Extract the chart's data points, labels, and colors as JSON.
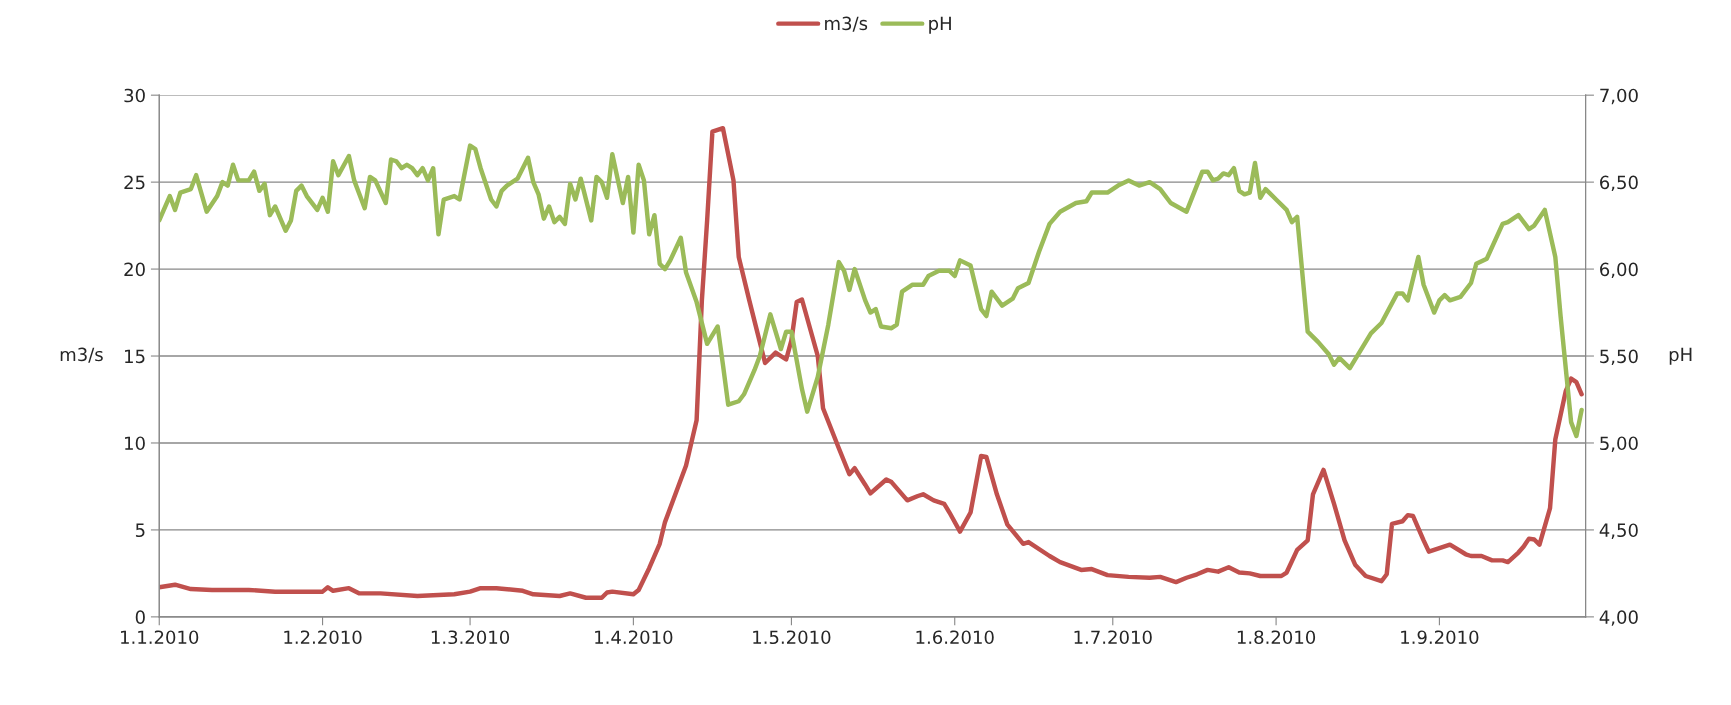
{
  "chart_data": {
    "type": "line",
    "ylabel": "m3/s",
    "y2label": "pH",
    "xlim": [
      "2010-01-01",
      "2010-09-28T18:00"
    ],
    "xticks": [
      {
        "value": "2010-01-01",
        "label": "1.1.2010"
      },
      {
        "value": "2010-02-01",
        "label": "1.2.2010"
      },
      {
        "value": "2010-03-01",
        "label": "1.3.2010"
      },
      {
        "value": "2010-04-01",
        "label": "1.4.2010"
      },
      {
        "value": "2010-05-01",
        "label": "1.5.2010"
      },
      {
        "value": "2010-06-01",
        "label": "1.6.2010"
      },
      {
        "value": "2010-07-01",
        "label": "1.7.2010"
      },
      {
        "value": "2010-08-01",
        "label": "1.8.2010"
      },
      {
        "value": "2010-09-01",
        "label": "1.9.2010"
      }
    ],
    "ylim": [
      0,
      30
    ],
    "yticks": [
      0,
      5,
      10,
      15,
      20,
      25,
      30
    ],
    "y2lim": [
      4,
      7
    ],
    "y2ticks": [
      {
        "value": 4,
        "label": "4,00"
      },
      {
        "value": 4.5,
        "label": "4,50"
      },
      {
        "value": 5,
        "label": "5,00"
      },
      {
        "value": 5.5,
        "label": "5,50"
      },
      {
        "value": 6,
        "label": "6,00"
      },
      {
        "value": 6.5,
        "label": "6,50"
      },
      {
        "value": 7,
        "label": "7,00"
      }
    ],
    "grid": "y",
    "legend": "top",
    "marker": "none",
    "line_style": "solid",
    "series": [
      {
        "name": "m3/s",
        "color": "#c0504d",
        "x": [
          "2010-01-01",
          "2010-01-04",
          "2010-01-07",
          "2010-01-11",
          "2010-01-18",
          "2010-01-23",
          "2010-02-01",
          "2010-02-02",
          "2010-02-03",
          "2010-02-06",
          "2010-02-08",
          "2010-02-12",
          "2010-02-19",
          "2010-02-26",
          "2010-03-01",
          "2010-03-03",
          "2010-03-06",
          "2010-03-11",
          "2010-03-13",
          "2010-03-18",
          "2010-03-20",
          "2010-03-23",
          "2010-03-26",
          "2010-03-27",
          "2010-03-28",
          "2010-04-01",
          "2010-04-02",
          "2010-04-04",
          "2010-04-06",
          "2010-04-07",
          "2010-04-11",
          "2010-04-13",
          "2010-04-14",
          "2010-04-15",
          "2010-04-16",
          "2010-04-18",
          "2010-04-20",
          "2010-04-21",
          "2010-04-23",
          "2010-04-26",
          "2010-04-28",
          "2010-04-30",
          "2010-05-01",
          "2010-05-02",
          "2010-05-03",
          "2010-05-06",
          "2010-05-07",
          "2010-05-10",
          "2010-05-12",
          "2010-05-13",
          "2010-05-15",
          "2010-05-16",
          "2010-05-19",
          "2010-05-20",
          "2010-05-23",
          "2010-05-25",
          "2010-05-26",
          "2010-05-28",
          "2010-05-30",
          "2010-05-31",
          "2010-06-02",
          "2010-06-04",
          "2010-06-06",
          "2010-06-07",
          "2010-06-09",
          "2010-06-11",
          "2010-06-14",
          "2010-06-15",
          "2010-06-19",
          "2010-06-21",
          "2010-06-25",
          "2010-06-27",
          "2010-06-30",
          "2010-07-04",
          "2010-07-08",
          "2010-07-10",
          "2010-07-13",
          "2010-07-15",
          "2010-07-17",
          "2010-07-19",
          "2010-07-21",
          "2010-07-23",
          "2010-07-25",
          "2010-07-27",
          "2010-07-29",
          "2010-08-02",
          "2010-08-03",
          "2010-08-05",
          "2010-08-07",
          "2010-08-08",
          "2010-08-10",
          "2010-08-12",
          "2010-08-14",
          "2010-08-16",
          "2010-08-18",
          "2010-08-21",
          "2010-08-22",
          "2010-08-23",
          "2010-08-25",
          "2010-08-26",
          "2010-08-27",
          "2010-08-29",
          "2010-08-30",
          "2010-09-02",
          "2010-09-03",
          "2010-09-06",
          "2010-09-07",
          "2010-09-09",
          "2010-09-11",
          "2010-09-13",
          "2010-09-14",
          "2010-09-16",
          "2010-09-17",
          "2010-09-18",
          "2010-09-19",
          "2010-09-20",
          "2010-09-22",
          "2010-09-23",
          "2010-09-25",
          "2010-09-26",
          "2010-09-27",
          "2010-09-28"
        ],
        "values": [
          1.7,
          1.85,
          1.6,
          1.55,
          1.55,
          1.45,
          1.45,
          1.7,
          1.5,
          1.65,
          1.35,
          1.35,
          1.2,
          1.3,
          1.45,
          1.65,
          1.65,
          1.5,
          1.3,
          1.2,
          1.35,
          1.1,
          1.1,
          1.4,
          1.45,
          1.3,
          1.55,
          2.8,
          4.2,
          5.45,
          8.7,
          11.3,
          18.2,
          22.8,
          27.9,
          28.1,
          25.1,
          20.7,
          18.2,
          14.6,
          15.2,
          14.8,
          15.9,
          18.1,
          18.25,
          15.0,
          12.0,
          9.7,
          8.2,
          8.55,
          7.6,
          7.1,
          7.9,
          7.75,
          6.7,
          6.95,
          7.05,
          6.7,
          6.5,
          6.0,
          4.9,
          6.0,
          9.25,
          9.2,
          7.05,
          5.3,
          4.2,
          4.3,
          3.5,
          3.15,
          2.7,
          2.75,
          2.4,
          2.3,
          2.25,
          2.3,
          2.0,
          2.25,
          2.45,
          2.7,
          2.6,
          2.85,
          2.55,
          2.5,
          2.35,
          2.35,
          2.55,
          3.85,
          4.4,
          7.05,
          8.45,
          6.5,
          4.4,
          3.0,
          2.35,
          2.05,
          2.45,
          5.35,
          5.5,
          5.85,
          5.8,
          4.4,
          3.75,
          4.05,
          4.15,
          3.6,
          3.5,
          3.5,
          3.25,
          3.25,
          3.15,
          3.7,
          4.05,
          4.5,
          4.45,
          4.15,
          6.25,
          10.2,
          13.0,
          13.7,
          13.5,
          12.8
        ]
      },
      {
        "name": "pH",
        "color": "#9bbb59",
        "axis": "y2",
        "x": [
          "2010-01-01",
          "2010-01-03",
          "2010-01-04",
          "2010-01-05",
          "2010-01-07",
          "2010-01-08",
          "2010-01-10",
          "2010-01-12",
          "2010-01-13",
          "2010-01-14",
          "2010-01-15",
          "2010-01-16",
          "2010-01-18",
          "2010-01-19",
          "2010-01-20",
          "2010-01-21",
          "2010-01-22",
          "2010-01-23",
          "2010-01-25",
          "2010-01-26",
          "2010-01-27",
          "2010-01-28",
          "2010-01-29",
          "2010-01-31",
          "2010-02-01",
          "2010-02-02",
          "2010-02-03",
          "2010-02-04",
          "2010-02-06",
          "2010-02-07",
          "2010-02-09",
          "2010-02-10",
          "2010-02-11",
          "2010-02-13",
          "2010-02-14",
          "2010-02-15",
          "2010-02-16",
          "2010-02-17",
          "2010-02-18",
          "2010-02-19",
          "2010-02-20",
          "2010-02-21",
          "2010-02-22",
          "2010-02-23",
          "2010-02-24",
          "2010-02-26",
          "2010-02-27",
          "2010-03-01",
          "2010-03-02",
          "2010-03-03",
          "2010-03-05",
          "2010-03-06",
          "2010-03-07",
          "2010-03-08",
          "2010-03-10",
          "2010-03-12",
          "2010-03-13",
          "2010-03-14",
          "2010-03-15",
          "2010-03-16",
          "2010-03-17",
          "2010-03-18",
          "2010-03-19",
          "2010-03-20",
          "2010-03-21",
          "2010-03-22",
          "2010-03-24",
          "2010-03-25",
          "2010-03-26",
          "2010-03-27",
          "2010-03-28",
          "2010-03-30",
          "2010-03-31",
          "2010-04-01",
          "2010-04-02",
          "2010-04-03",
          "2010-04-04",
          "2010-04-05",
          "2010-04-06",
          "2010-04-07",
          "2010-04-08",
          "2010-04-10",
          "2010-04-11",
          "2010-04-13",
          "2010-04-15",
          "2010-04-17",
          "2010-04-18",
          "2010-04-19",
          "2010-04-21",
          "2010-04-22",
          "2010-04-24",
          "2010-04-25",
          "2010-04-27",
          "2010-04-29",
          "2010-04-30",
          "2010-05-01",
          "2010-05-03",
          "2010-05-04",
          "2010-05-06",
          "2010-05-08",
          "2010-05-10",
          "2010-05-11",
          "2010-05-12",
          "2010-05-13",
          "2010-05-15",
          "2010-05-16",
          "2010-05-17",
          "2010-05-18",
          "2010-05-20",
          "2010-05-21",
          "2010-05-22",
          "2010-05-24",
          "2010-05-26",
          "2010-05-27",
          "2010-05-29",
          "2010-05-31",
          "2010-06-01",
          "2010-06-02",
          "2010-06-04",
          "2010-06-06",
          "2010-06-07",
          "2010-06-08",
          "2010-06-10",
          "2010-06-12",
          "2010-06-13",
          "2010-06-15",
          "2010-06-17",
          "2010-06-19",
          "2010-06-21",
          "2010-06-24",
          "2010-06-26",
          "2010-06-27",
          "2010-06-30",
          "2010-07-02",
          "2010-07-04",
          "2010-07-06",
          "2010-07-08",
          "2010-07-10",
          "2010-07-12",
          "2010-07-15",
          "2010-07-18",
          "2010-07-19",
          "2010-07-20",
          "2010-07-21",
          "2010-07-22",
          "2010-07-23",
          "2010-07-24",
          "2010-07-25",
          "2010-07-26",
          "2010-07-27",
          "2010-07-28",
          "2010-07-29",
          "2010-07-30",
          "2010-08-01",
          "2010-08-03",
          "2010-08-04",
          "2010-08-05",
          "2010-08-07",
          "2010-08-09",
          "2010-08-11",
          "2010-08-12",
          "2010-08-13",
          "2010-08-15",
          "2010-08-19",
          "2010-08-21",
          "2010-08-24",
          "2010-08-25",
          "2010-08-26",
          "2010-08-28",
          "2010-08-29",
          "2010-08-31",
          "2010-09-01",
          "2010-09-02",
          "2010-09-03",
          "2010-09-05",
          "2010-09-07",
          "2010-09-08",
          "2010-09-10",
          "2010-09-13",
          "2010-09-14",
          "2010-09-16",
          "2010-09-18",
          "2010-09-19",
          "2010-09-21",
          "2010-09-23",
          "2010-09-24",
          "2010-09-26",
          "2010-09-27",
          "2010-09-28"
        ],
        "values": [
          6.28,
          6.42,
          6.34,
          6.44,
          6.46,
          6.54,
          6.33,
          6.42,
          6.5,
          6.48,
          6.6,
          6.51,
          6.51,
          6.56,
          6.45,
          6.49,
          6.31,
          6.36,
          6.22,
          6.28,
          6.45,
          6.48,
          6.42,
          6.34,
          6.41,
          6.33,
          6.62,
          6.54,
          6.65,
          6.51,
          6.35,
          6.53,
          6.51,
          6.38,
          6.63,
          6.62,
          6.58,
          6.6,
          6.58,
          6.54,
          6.58,
          6.51,
          6.58,
          6.2,
          6.4,
          6.42,
          6.4,
          6.71,
          6.69,
          6.58,
          6.4,
          6.36,
          6.45,
          6.48,
          6.52,
          6.64,
          6.5,
          6.43,
          6.29,
          6.36,
          6.27,
          6.3,
          6.26,
          6.49,
          6.4,
          6.52,
          6.28,
          6.53,
          6.5,
          6.41,
          6.66,
          6.38,
          6.53,
          6.21,
          6.6,
          6.51,
          6.2,
          6.31,
          6.03,
          6.0,
          6.05,
          6.18,
          5.98,
          5.81,
          5.57,
          5.67,
          5.45,
          5.22,
          5.24,
          5.28,
          5.42,
          5.5,
          5.74,
          5.54,
          5.64,
          5.64,
          5.31,
          5.18,
          5.38,
          5.68,
          6.04,
          5.99,
          5.88,
          6.0,
          5.82,
          5.75,
          5.77,
          5.67,
          5.66,
          5.68,
          5.87,
          5.91,
          5.91,
          5.96,
          5.99,
          5.99,
          5.96,
          6.05,
          6.02,
          5.77,
          5.73,
          5.87,
          5.79,
          5.83,
          5.89,
          5.92,
          6.1,
          6.26,
          6.33,
          6.38,
          6.39,
          6.44,
          6.44,
          6.48,
          6.51,
          6.48,
          6.5,
          6.46,
          6.38,
          6.33,
          6.56,
          6.56,
          6.51,
          6.52,
          6.55,
          6.54,
          6.58,
          6.45,
          6.43,
          6.44,
          6.61,
          6.41,
          6.46,
          6.4,
          6.34,
          6.27,
          6.3,
          5.64,
          5.58,
          5.51,
          5.45,
          5.49,
          5.43,
          5.63,
          5.69,
          5.86,
          5.86,
          5.82,
          6.07,
          5.91,
          5.75,
          5.82,
          5.85,
          5.82,
          5.84,
          5.92,
          6.03,
          6.06,
          6.26,
          6.27,
          6.31,
          6.23,
          6.25,
          6.34,
          6.07,
          5.73,
          5.12,
          5.04,
          5.19
        ]
      }
    ]
  }
}
